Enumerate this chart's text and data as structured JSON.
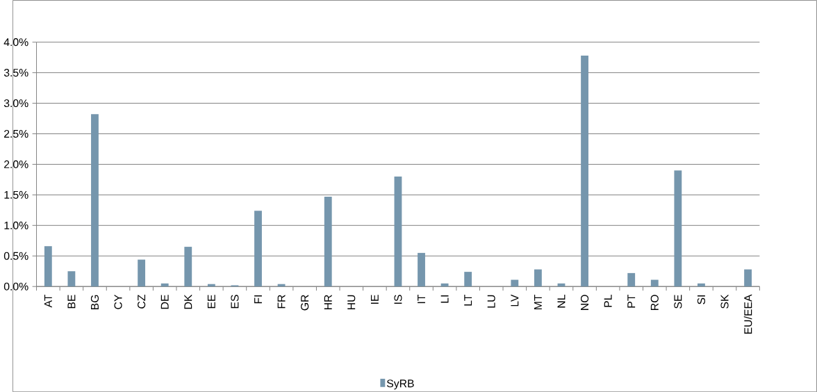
{
  "chart_data": {
    "type": "bar",
    "categories": [
      "AT",
      "BE",
      "BG",
      "CY",
      "CZ",
      "DE",
      "DK",
      "EE",
      "ES",
      "FI",
      "FR",
      "GR",
      "HR",
      "HU",
      "IE",
      "IS",
      "IT",
      "LI",
      "LT",
      "LU",
      "LV",
      "MT",
      "NL",
      "NO",
      "PL",
      "PT",
      "RO",
      "SE",
      "SI",
      "SK",
      "EU/EEA"
    ],
    "series": [
      {
        "name": "SyRB",
        "color": "#7596ad",
        "values": [
          0.66,
          0.25,
          2.82,
          0,
          0.44,
          0.05,
          0.65,
          0.04,
          0.02,
          1.24,
          0.04,
          0,
          1.47,
          0,
          0,
          1.8,
          0.55,
          0.05,
          0.24,
          0,
          0.11,
          0.28,
          0.05,
          3.78,
          0,
          0.22,
          0.11,
          1.9,
          0.05,
          0,
          0.28
        ]
      }
    ],
    "ylim": [
      0,
      4.0
    ],
    "yticks": [
      {
        "value": 0,
        "label": "0.0%"
      },
      {
        "value": 0.5,
        "label": "0.5%"
      },
      {
        "value": 1.0,
        "label": "1.0%"
      },
      {
        "value": 1.5,
        "label": "1.5%"
      },
      {
        "value": 2.0,
        "label": "2.0%"
      },
      {
        "value": 2.5,
        "label": "2.5%"
      },
      {
        "value": 3.0,
        "label": "3.0%"
      },
      {
        "value": 3.5,
        "label": "3.5%"
      },
      {
        "value": 4.0,
        "label": "4.0%"
      }
    ],
    "grid": "y",
    "legend": "bottom"
  }
}
